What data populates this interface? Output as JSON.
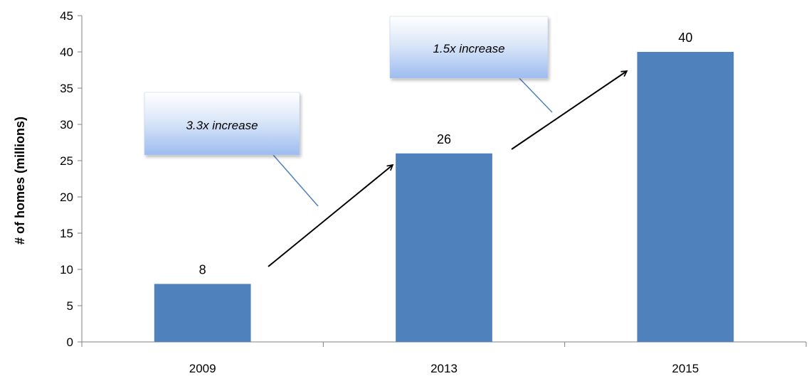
{
  "chart_data": {
    "type": "bar",
    "categories": [
      "2009",
      "2013",
      "2015"
    ],
    "values": [
      8,
      26,
      40
    ],
    "data_labels": [
      "8",
      "26",
      "40"
    ],
    "title": "",
    "xlabel": "",
    "ylabel": "# of homes (millions)",
    "ylim": [
      0,
      45
    ],
    "yticks": [
      0,
      5,
      10,
      15,
      20,
      25,
      30,
      35,
      40,
      45
    ],
    "grid": false,
    "legend": "none",
    "bar_color": "#4F81BD",
    "annotations": [
      {
        "text": "3.3x increase",
        "from_category": "2009",
        "to_category": "2013"
      },
      {
        "text": "1.5x increase",
        "from_category": "2013",
        "to_category": "2015"
      }
    ]
  }
}
